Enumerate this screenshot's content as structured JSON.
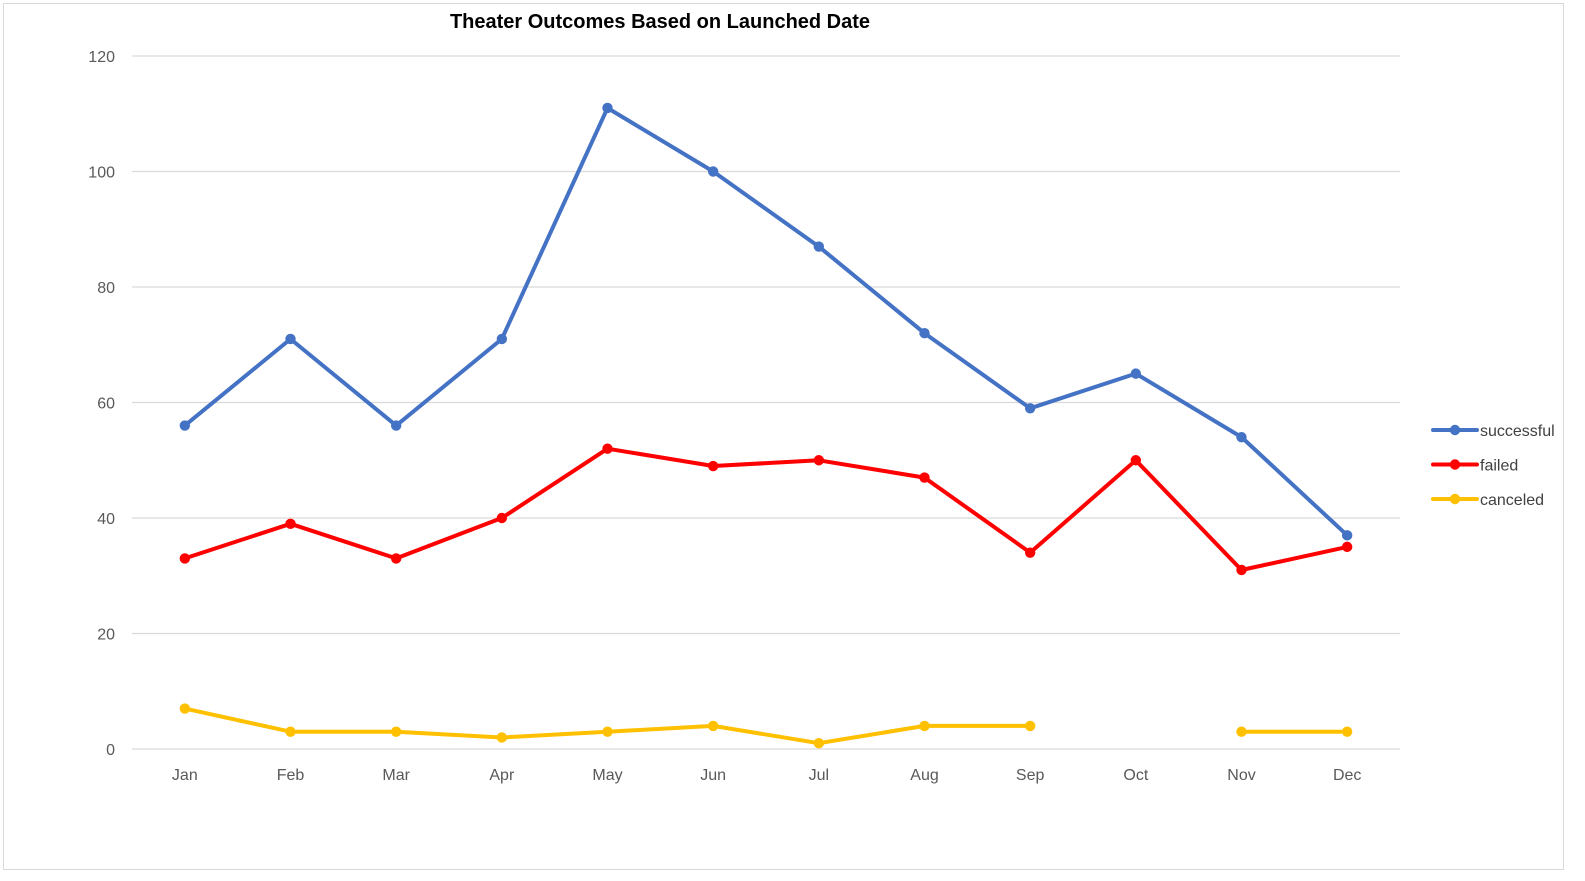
{
  "chart_data": {
    "type": "line",
    "title": "Theater Outcomes Based on Launched Date",
    "xlabel": "",
    "ylabel": "",
    "categories": [
      "Jan",
      "Feb",
      "Mar",
      "Apr",
      "May",
      "Jun",
      "Jul",
      "Aug",
      "Sep",
      "Oct",
      "Nov",
      "Dec"
    ],
    "ylim": [
      0,
      120
    ],
    "yticks": [
      0,
      20,
      40,
      60,
      80,
      100,
      120
    ],
    "grid": true,
    "legend_position": "right",
    "series": [
      {
        "name": "successful",
        "color": "#4472c4",
        "values": [
          56,
          71,
          56,
          71,
          111,
          100,
          87,
          72,
          59,
          65,
          54,
          37
        ]
      },
      {
        "name": "failed",
        "color": "#ff0000",
        "values": [
          33,
          39,
          33,
          40,
          52,
          49,
          50,
          47,
          34,
          50,
          31,
          35
        ]
      },
      {
        "name": "canceled",
        "color": "#ffc000",
        "values": [
          7,
          3,
          3,
          2,
          3,
          4,
          1,
          4,
          4,
          null,
          3,
          3
        ]
      }
    ]
  }
}
